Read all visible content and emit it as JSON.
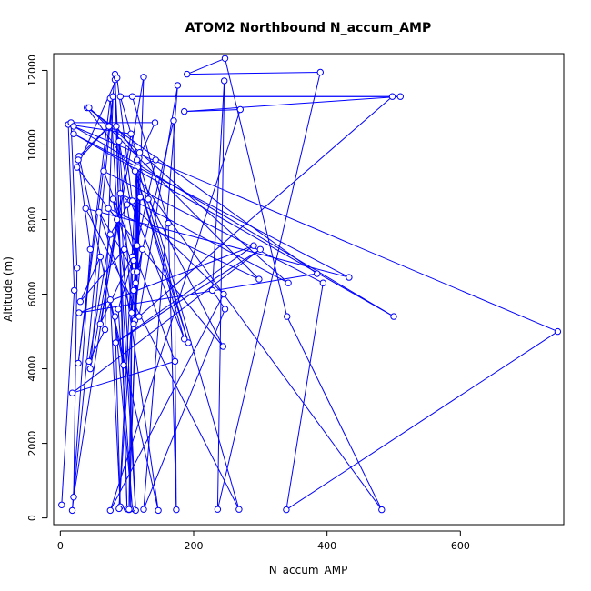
{
  "colors": {
    "series": "#0000ff",
    "axis": "#000000",
    "background": "#ffffff"
  },
  "chart_data": {
    "type": "line",
    "title": "ATOM2 Northbound N_accum_AMP",
    "xlabel": "N_accum_AMP",
    "ylabel": "Altitude (m)",
    "xlim": [
      -10,
      755
    ],
    "ylim": [
      -180,
      12450
    ],
    "xticks": [
      0,
      200,
      400,
      600
    ],
    "yticks": [
      0,
      2000,
      4000,
      6000,
      8000,
      10000,
      12000
    ],
    "grid": false,
    "legend": "none",
    "marker": "open-circle",
    "series": [
      {
        "points": [
          [
            2,
            350
          ],
          [
            21,
            6100
          ],
          [
            12,
            10550
          ],
          [
            106,
            10300
          ],
          [
            20,
            560
          ],
          [
            25,
            6700
          ],
          [
            16,
            10600
          ],
          [
            142,
            10600
          ],
          [
            118,
            9650
          ],
          [
            84,
            10500
          ],
          [
            95,
            4100
          ],
          [
            28,
            9700
          ],
          [
            73,
            10500
          ],
          [
            27,
            9600
          ],
          [
            45,
            7200
          ],
          [
            18,
            200
          ],
          [
            82,
            11900
          ],
          [
            100,
            240
          ],
          [
            82,
            11750
          ],
          [
            113,
            200
          ],
          [
            75,
            11250
          ],
          [
            27,
            4150
          ],
          [
            79,
            11300
          ],
          [
            67,
            5050
          ],
          [
            43,
            4200
          ],
          [
            75,
            7600
          ],
          [
            105,
            8500
          ],
          [
            88,
            10100
          ],
          [
            107,
            5500
          ],
          [
            58,
            8200
          ],
          [
            110,
            6600
          ],
          [
            79,
            8550
          ],
          [
            147,
            200
          ],
          [
            75,
            5850
          ],
          [
            90,
            300
          ],
          [
            82,
            5400
          ],
          [
            108,
            250
          ],
          [
            87,
            5600
          ],
          [
            115,
            7300
          ],
          [
            60,
            5200
          ],
          [
            125,
            11820
          ],
          [
            103,
            220
          ],
          [
            108,
            7000
          ],
          [
            105,
            240
          ],
          [
            103,
            230
          ],
          [
            120,
            8600
          ],
          [
            110,
            6100
          ],
          [
            88,
            250
          ],
          [
            115,
            9600
          ],
          [
            112,
            5300
          ],
          [
            119,
            9800
          ],
          [
            110,
            5200
          ],
          [
            123,
            7200
          ],
          [
            113,
            6300
          ],
          [
            116,
            9450
          ],
          [
            110,
            6900
          ],
          [
            143,
            9600
          ],
          [
            116,
            9400
          ],
          [
            192,
            4700
          ],
          [
            112,
            9300
          ],
          [
            186,
            4800
          ],
          [
            105,
            8500
          ],
          [
            100,
            8400
          ],
          [
            115,
            6600
          ],
          [
            170,
            10650
          ],
          [
            174,
            220
          ],
          [
            162,
            7900
          ],
          [
            108,
            11300
          ],
          [
            498,
            11300
          ],
          [
            118,
            5400
          ],
          [
            176,
            11600
          ],
          [
            125,
            230
          ],
          [
            247,
            5600
          ],
          [
            228,
            6100
          ],
          [
            246,
            11720
          ],
          [
            236,
            230
          ],
          [
            390,
            11950
          ],
          [
            190,
            11900
          ],
          [
            247,
            12320
          ],
          [
            340,
            5400
          ],
          [
            482,
            220
          ],
          [
            40,
            11000
          ],
          [
            385,
            6550
          ],
          [
            28,
            5500
          ],
          [
            290,
            7300
          ],
          [
            83,
            4700
          ],
          [
            300,
            7200
          ],
          [
            18,
            3350
          ],
          [
            172,
            4200
          ],
          [
            65,
            9300
          ],
          [
            394,
            6300
          ],
          [
            339,
            220
          ],
          [
            746,
            5000
          ],
          [
            20,
            10500
          ],
          [
            500,
            5400
          ],
          [
            20,
            10300
          ],
          [
            433,
            6450
          ],
          [
            38,
            8300
          ],
          [
            268,
            230
          ],
          [
            90,
            11300
          ],
          [
            510,
            11300
          ],
          [
            186,
            10900
          ],
          [
            270,
            10950
          ],
          [
            75,
            200
          ],
          [
            245,
            6000
          ],
          [
            90,
            8700
          ],
          [
            342,
            6300
          ],
          [
            43,
            11000
          ],
          [
            298,
            6400
          ],
          [
            72,
            8300
          ],
          [
            244,
            4600
          ],
          [
            132,
            8550
          ],
          [
            108,
            8500
          ],
          [
            85,
            11800
          ],
          [
            25,
            9400
          ],
          [
            85,
            8000
          ],
          [
            45,
            4000
          ],
          [
            60,
            7000
          ],
          [
            30,
            5800
          ],
          [
            96,
            7200
          ]
        ]
      }
    ]
  }
}
